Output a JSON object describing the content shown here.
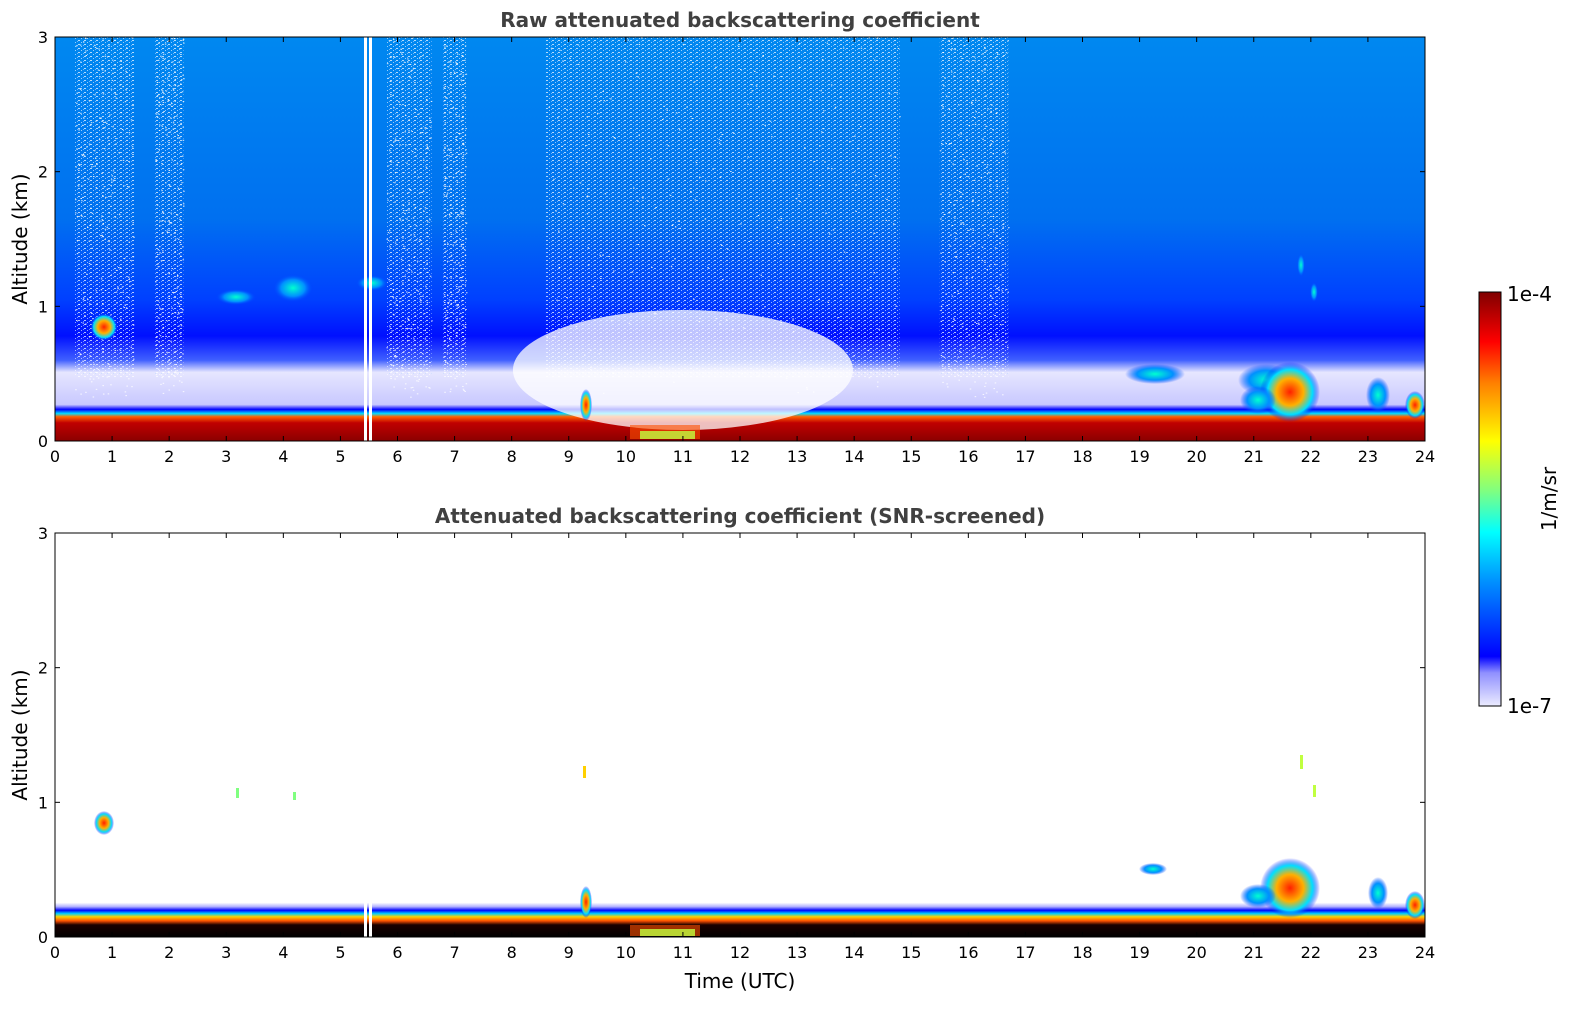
{
  "chart_data": [
    {
      "type": "heatmap",
      "title": "Raw attenuated backscattering coefficient",
      "xlabel": "",
      "ylabel": "Altitude (km)",
      "xlim": [
        0,
        24
      ],
      "ylim": [
        0,
        3
      ],
      "xticks": [
        "0",
        "1",
        "2",
        "3",
        "4",
        "5",
        "6",
        "7",
        "8",
        "9",
        "10",
        "11",
        "12",
        "13",
        "14",
        "15",
        "16",
        "17",
        "18",
        "19",
        "20",
        "21",
        "22",
        "23",
        "24"
      ],
      "yticks": [
        "0",
        "1",
        "2",
        "3"
      ],
      "features": [
        {
          "kind": "surface_layer",
          "x": [
            0,
            24
          ],
          "y": [
            0,
            0.2
          ],
          "level": "high"
        },
        {
          "kind": "background_noise",
          "x": [
            0,
            24
          ],
          "y": [
            0.8,
            3
          ],
          "level": "low"
        },
        {
          "kind": "cloud",
          "x": [
            0.7,
            1.0
          ],
          "y": [
            0.75,
            0.9
          ],
          "level": "high"
        },
        {
          "kind": "cloud",
          "x": [
            21.0,
            22.2
          ],
          "y": [
            0.1,
            0.6
          ],
          "level": "high"
        },
        {
          "kind": "cloud",
          "x": [
            18.9,
            19.6
          ],
          "y": [
            0.45,
            0.55
          ],
          "level": "medium"
        }
      ]
    },
    {
      "type": "heatmap",
      "title": "Attenuated backscattering coefficient (SNR-screened)",
      "xlabel": "Time (UTC)",
      "ylabel": "Altitude (km)",
      "xlim": [
        0,
        24
      ],
      "ylim": [
        0,
        3
      ],
      "xticks": [
        "0",
        "1",
        "2",
        "3",
        "4",
        "5",
        "6",
        "7",
        "8",
        "9",
        "10",
        "11",
        "12",
        "13",
        "14",
        "15",
        "16",
        "17",
        "18",
        "19",
        "20",
        "21",
        "22",
        "23",
        "24"
      ],
      "yticks": [
        "0",
        "1",
        "2",
        "3"
      ],
      "features": [
        {
          "kind": "surface_layer",
          "x": [
            0,
            24
          ],
          "y": [
            0,
            0.2
          ],
          "level": "high"
        },
        {
          "kind": "cloud",
          "x": [
            0.7,
            1.0
          ],
          "y": [
            0.75,
            0.9
          ],
          "level": "high"
        },
        {
          "kind": "cloud",
          "x": [
            21.0,
            22.2
          ],
          "y": [
            0.1,
            0.6
          ],
          "level": "high"
        }
      ]
    }
  ],
  "colorbar": {
    "label": "1/m/sr",
    "max_label": "1e-4",
    "min_label": "1e-7",
    "colormap": "jet",
    "colors": [
      "#e8e8ff",
      "#0000ff",
      "#00a0ff",
      "#00ffff",
      "#80ff80",
      "#ffff00",
      "#ff8000",
      "#ff0000",
      "#800000"
    ]
  }
}
